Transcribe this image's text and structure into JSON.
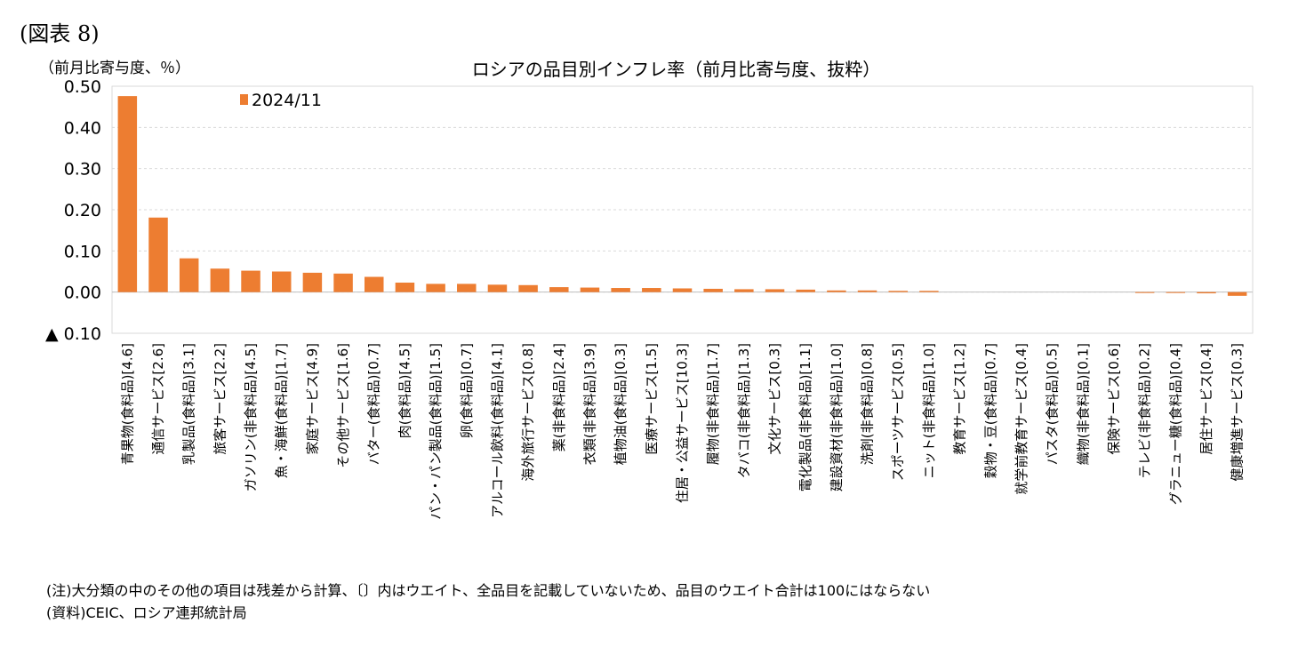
{
  "figure_label": "(図表 8)",
  "unit_label": "（前月比寄与度、％）",
  "notes": [
    "(注)大分類の中のその他の項目は残差から計算、〔〕内はウエイト、全品目を記載していないため、品目のウエイト合計は100にはならない",
    "(資料)CEIC、ロシア連邦統計局"
  ],
  "colors": {
    "bar": "#ED7D31",
    "grid": "#D9D9D9",
    "axis": "#BFBFBF"
  },
  "chart_data": {
    "type": "bar",
    "title": "ロシアの品目別インフレ率（前月比寄与度、抜粋）",
    "ylim": [
      -0.1,
      0.5
    ],
    "yticks": [
      0.5,
      0.4,
      0.3,
      0.2,
      0.1,
      0.0,
      -0.1
    ],
    "ytick_labels": [
      "0.50",
      "0.40",
      "0.30",
      "0.20",
      "0.10",
      "0.00",
      "▲ 0.10"
    ],
    "grid": true,
    "legend_position": "top-left",
    "categories": [
      "青果物(食料品)[4.6]",
      "通信サービス[2.6]",
      "乳製品(食料品)[3.1]",
      "旅客サービス[2.2]",
      "ガソリン(非食料品)[4.5]",
      "魚・海鮮(食料品)[1.7]",
      "家庭サービス[4.9]",
      "その他サービス[1.6]",
      "バター(食料品)[0.7]",
      "肉(食料品)[4.5]",
      "パン・パン製品(食料品)[1.5]",
      "卵(食料品)[0.7]",
      "アルコール飲料(食料品)[4.1]",
      "海外旅行サービス[0.8]",
      "薬(非食料品)[2.4]",
      "衣類(非食料品)[3.9]",
      "植物油(食料品)[0.3]",
      "医療サービス[1.5]",
      "住居・公益サービス[10.3]",
      "履物(非食料品)[1.7]",
      "タバコ(非食料品)[1.3]",
      "文化サービス[0.3]",
      "電化製品(非食料品)[1.1]",
      "建設資材(非食料品)[1.0]",
      "洗剤(非食料品)[0.8]",
      "スポーツサービス[0.5]",
      "ニット(非食料品)[1.0]",
      "教育サービス[1.2]",
      "穀物・豆(食料品)[0.7]",
      "就学前教育サービス[0.4]",
      "パスタ(食料品)[0.5]",
      "織物(非食料品)[0.1]",
      "保険サービス[0.6]",
      "テレビ(非食料品)[0.2]",
      "グラニュー糖(食料品)[0.4]",
      "居住サービス[0.4]",
      "健康増進サービス[0.3]"
    ],
    "series": [
      {
        "name": "2024/11",
        "values": [
          0.476,
          0.181,
          0.082,
          0.057,
          0.052,
          0.05,
          0.047,
          0.045,
          0.037,
          0.023,
          0.02,
          0.02,
          0.018,
          0.017,
          0.012,
          0.011,
          0.01,
          0.01,
          0.009,
          0.008,
          0.007,
          0.007,
          0.006,
          0.004,
          0.004,
          0.003,
          0.003,
          0.0,
          0.0,
          0.0,
          0.0,
          0.0,
          0.0,
          -0.001,
          -0.001,
          -0.003,
          -0.009
        ]
      }
    ]
  }
}
